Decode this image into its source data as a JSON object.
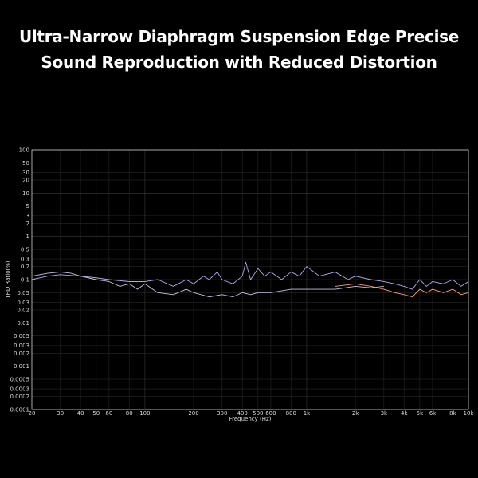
{
  "headline": {
    "line1": "Ultra-Narrow Diaphragm Suspension Edge Precise",
    "line2": "Sound Reproduction with Reduced Distortion"
  },
  "chart_data": {
    "type": "line",
    "xlabel": "Frequency (Hz)",
    "ylabel": "THD Ratio(%)",
    "x_scale": "log",
    "y_scale": "log",
    "xlim": [
      20,
      10000
    ],
    "ylim": [
      0.0001,
      100
    ],
    "grid": true,
    "x_ticks": [
      {
        "v": 20,
        "label": "20"
      },
      {
        "v": 30,
        "label": "30"
      },
      {
        "v": 40,
        "label": "40"
      },
      {
        "v": 50,
        "label": "50"
      },
      {
        "v": 60,
        "label": "60"
      },
      {
        "v": 80,
        "label": "80"
      },
      {
        "v": 100,
        "label": "100"
      },
      {
        "v": 200,
        "label": "200"
      },
      {
        "v": 300,
        "label": "300"
      },
      {
        "v": 400,
        "label": "400"
      },
      {
        "v": 500,
        "label": "500"
      },
      {
        "v": 600,
        "label": "600"
      },
      {
        "v": 800,
        "label": "800"
      },
      {
        "v": 1000,
        "label": "1k"
      },
      {
        "v": 2000,
        "label": "2k"
      },
      {
        "v": 3000,
        "label": "3k"
      },
      {
        "v": 4000,
        "label": "4k"
      },
      {
        "v": 5000,
        "label": "5k"
      },
      {
        "v": 6000,
        "label": "6k"
      },
      {
        "v": 8000,
        "label": "8k"
      },
      {
        "v": 10000,
        "label": "10k"
      }
    ],
    "y_ticks": [
      {
        "v": 100,
        "label": "100"
      },
      {
        "v": 50,
        "label": "50"
      },
      {
        "v": 30,
        "label": "30"
      },
      {
        "v": 20,
        "label": "20"
      },
      {
        "v": 10,
        "label": "10"
      },
      {
        "v": 5,
        "label": "5"
      },
      {
        "v": 3,
        "label": "3"
      },
      {
        "v": 2,
        "label": "2"
      },
      {
        "v": 1,
        "label": "1"
      },
      {
        "v": 0.5,
        "label": "0.5"
      },
      {
        "v": 0.3,
        "label": "0.3"
      },
      {
        "v": 0.2,
        "label": "0.2"
      },
      {
        "v": 0.1,
        "label": "0.1"
      },
      {
        "v": 0.05,
        "label": "0.05"
      },
      {
        "v": 0.03,
        "label": "0.03"
      },
      {
        "v": 0.02,
        "label": "0.02"
      },
      {
        "v": 0.01,
        "label": "0.01"
      },
      {
        "v": 0.005,
        "label": "0.005"
      },
      {
        "v": 0.003,
        "label": "0.003"
      },
      {
        "v": 0.002,
        "label": "0.002"
      },
      {
        "v": 0.001,
        "label": "0.001"
      },
      {
        "v": 0.0005,
        "label": "0.0005"
      },
      {
        "v": 0.0003,
        "label": "0.0003"
      },
      {
        "v": 0.0002,
        "label": "0.0002"
      },
      {
        "v": 0.0001,
        "label": "0.0001"
      }
    ],
    "series": [
      {
        "color": "#c9c2dd",
        "x": [
          20,
          25,
          30,
          35,
          40,
          50,
          60,
          70,
          80,
          90,
          100,
          120,
          150,
          180,
          200,
          250,
          300,
          350,
          400,
          450,
          500,
          600,
          700,
          800,
          1000,
          1500,
          2000,
          2500,
          3000
        ],
        "y": [
          0.12,
          0.14,
          0.15,
          0.14,
          0.12,
          0.1,
          0.09,
          0.07,
          0.08,
          0.06,
          0.08,
          0.05,
          0.045,
          0.06,
          0.05,
          0.04,
          0.045,
          0.04,
          0.05,
          0.045,
          0.05,
          0.05,
          0.055,
          0.06,
          0.06,
          0.06,
          0.07,
          0.065,
          0.07
        ]
      },
      {
        "color": "#b8a8e8",
        "x": [
          20,
          25,
          30,
          40,
          50,
          60,
          80,
          100,
          120,
          150,
          180,
          200,
          230,
          250,
          280,
          300,
          350,
          400,
          420,
          450,
          500,
          550,
          600,
          700,
          800,
          900,
          1000,
          1200,
          1500,
          1800,
          2000,
          2500,
          3000,
          3500,
          4000,
          4500,
          5000,
          5500,
          6000,
          7000,
          8000,
          9000,
          10000
        ],
        "y": [
          0.1,
          0.12,
          0.13,
          0.12,
          0.11,
          0.1,
          0.09,
          0.09,
          0.1,
          0.07,
          0.1,
          0.08,
          0.12,
          0.1,
          0.15,
          0.1,
          0.08,
          0.12,
          0.25,
          0.1,
          0.18,
          0.12,
          0.15,
          0.1,
          0.15,
          0.12,
          0.2,
          0.12,
          0.15,
          0.1,
          0.12,
          0.1,
          0.09,
          0.08,
          0.07,
          0.06,
          0.1,
          0.07,
          0.09,
          0.08,
          0.1,
          0.07,
          0.09
        ]
      },
      {
        "color": "#ff9a7a",
        "x": [
          1500,
          2000,
          2500,
          3000,
          3500,
          4000,
          4500,
          5000,
          5500,
          6000,
          7000,
          8000,
          9000,
          10000
        ],
        "y": [
          0.07,
          0.08,
          0.07,
          0.06,
          0.05,
          0.045,
          0.04,
          0.06,
          0.05,
          0.06,
          0.05,
          0.06,
          0.045,
          0.05
        ]
      }
    ]
  }
}
